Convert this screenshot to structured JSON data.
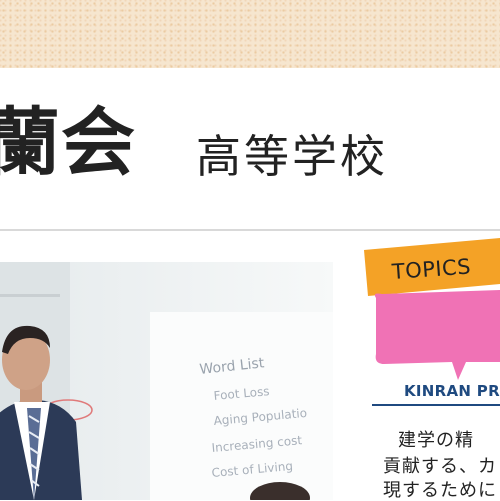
{
  "header": {
    "school_name": "蘭会",
    "school_type": "高等学校"
  },
  "photo": {
    "whiteboard_title": "Word List",
    "whiteboard_lines": [
      "Foot Loss",
      "Aging Populatio",
      "Increasing cost",
      "Cost of Living"
    ]
  },
  "topics": {
    "tab_label": "TOPICS",
    "heading": "KINRAN PRI",
    "lines": [
      "建学の精",
      "貢献する、カ",
      "現するために"
    ]
  },
  "colors": {
    "pattern_bg": "#f6e6cf",
    "tab_orange": "#f4a226",
    "bubble_pink": "#f072b5",
    "heading_blue": "#1f4a80"
  }
}
